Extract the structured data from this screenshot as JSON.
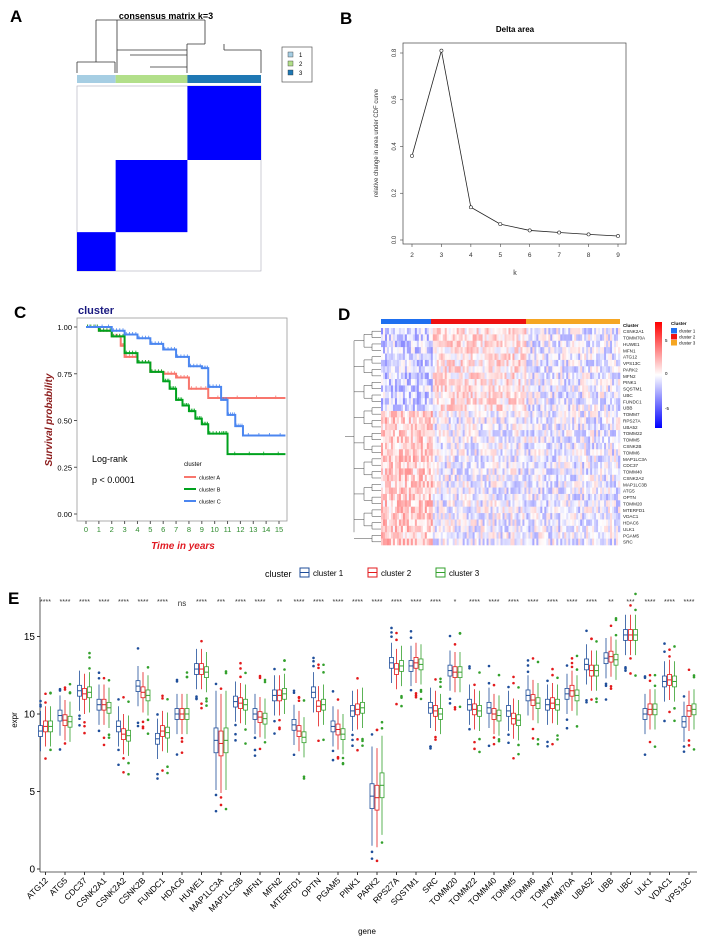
{
  "panels": {
    "A": "A",
    "B": "B",
    "C": "C",
    "D": "D",
    "E": "E"
  },
  "chart_data": [
    {
      "panel": "A",
      "type": "heatmap",
      "title": "consensus matrix k=3",
      "clusters": [
        {
          "label": "1",
          "color": "#a6cee3",
          "share": 0.21
        },
        {
          "label": "2",
          "color": "#b2df8a",
          "share": 0.39
        },
        {
          "label": "3",
          "color": "#1f78b4",
          "share": 0.4
        }
      ],
      "block_color": "#0000ff"
    },
    {
      "panel": "B",
      "type": "line",
      "title": "Delta area",
      "xlabel": "k",
      "ylabel": "relative change in area under CDF curve",
      "x": [
        2,
        3,
        4,
        5,
        6,
        7,
        8,
        9
      ],
      "y": [
        0.36,
        0.81,
        0.14,
        0.068,
        0.041,
        0.032,
        0.024,
        0.017
      ],
      "xticks": [
        "2",
        "3",
        "4",
        "5",
        "6",
        "7",
        "8",
        "9"
      ],
      "yticks": [
        "0.0",
        "0.2",
        "0.4",
        "0.6",
        "0.8"
      ],
      "ylim": [
        0,
        0.8
      ]
    },
    {
      "panel": "C",
      "type": "line",
      "title": "cluster",
      "xlabel": "Time in years",
      "ylabel": "Survival probability",
      "xticks": [
        "0",
        "1",
        "2",
        "3",
        "4",
        "5",
        "6",
        "7",
        "8",
        "9",
        "10",
        "11",
        "12",
        "13",
        "14",
        "15"
      ],
      "yticks": [
        "0.00",
        "0.25",
        "0.50",
        "0.75",
        "1.00"
      ],
      "xlim": [
        0,
        15.5
      ],
      "ylim": [
        0,
        1
      ],
      "annotation": [
        "Log-rank",
        "p < 0.0001"
      ],
      "legend_title": "cluster",
      "series": [
        {
          "name": "cluster A",
          "color": "#f8766d",
          "x": [
            0,
            1,
            2,
            2.7,
            3,
            4,
            5,
            6,
            7,
            8,
            9.5,
            15.5
          ],
          "y": [
            1,
            0.98,
            0.95,
            0.9,
            0.84,
            0.81,
            0.76,
            0.75,
            0.73,
            0.67,
            0.62,
            0.62
          ]
        },
        {
          "name": "cluster B",
          "color": "#00a21e",
          "x": [
            0,
            1,
            2,
            3,
            4,
            5,
            6,
            6.5,
            7,
            7.5,
            8,
            8.5,
            9,
            9.5,
            10.5,
            11,
            15.5
          ],
          "y": [
            1,
            0.98,
            0.95,
            0.86,
            0.81,
            0.76,
            0.71,
            0.67,
            0.61,
            0.58,
            0.55,
            0.51,
            0.48,
            0.43,
            0.43,
            0.32,
            0.32
          ]
        },
        {
          "name": "cluster C",
          "color": "#4b86f0",
          "x": [
            0,
            2,
            3,
            4,
            5,
            6,
            7,
            8,
            9,
            9.5,
            10.5,
            11,
            11.6,
            12.2,
            15.5
          ],
          "y": [
            1,
            0.98,
            0.96,
            0.94,
            0.91,
            0.88,
            0.84,
            0.79,
            0.78,
            0.68,
            0.61,
            0.53,
            0.47,
            0.42,
            0.42
          ]
        }
      ]
    },
    {
      "panel": "D",
      "type": "heatmap",
      "annotation_title": "Cluster",
      "legend_title": "Cluster",
      "groups": [
        {
          "name": "cluster 1",
          "color": "#1e6ff0"
        },
        {
          "name": "cluster 2",
          "color": "#ee1111"
        },
        {
          "name": "cluster 3",
          "color": "#f5a623"
        }
      ],
      "color_scale": {
        "low": "#0000ff",
        "mid": "#ffffff",
        "high": "#ff0000",
        "ticks": [
          "5",
          "0",
          "-5"
        ]
      },
      "genes": [
        "CSNK2A1",
        "TOMM70A",
        "HUWE1",
        "MFN1",
        "ATG12",
        "VPS13C",
        "PARK2",
        "MFN2",
        "PINK1",
        "SQSTM1",
        "UBC",
        "FUNDC1",
        "UBB",
        "TOMM7",
        "RPS27A",
        "UBA52",
        "TOMM22",
        "TOMM5",
        "CSNK2B",
        "TOMM6",
        "MAP1LC3A",
        "CDC37",
        "TOMM40",
        "CSNK2A2",
        "MAP1LC3B",
        "ATG5",
        "OPTN",
        "TOMM20",
        "MTERFD1",
        "VDAC1",
        "HDAC6",
        "ULK1",
        "PGAM5",
        "SRC"
      ]
    },
    {
      "panel": "E",
      "type": "box",
      "xlabel": "gene",
      "ylabel": "expr",
      "yticks": [
        "0",
        "5",
        "10",
        "15"
      ],
      "ylim": [
        0,
        17.5
      ],
      "legend_title": "cluster",
      "series": [
        {
          "name": "cluster 1",
          "color": "#1f4e9a"
        },
        {
          "name": "cluster 2",
          "color": "#e31a1c"
        },
        {
          "name": "cluster 3",
          "color": "#33a02c"
        }
      ],
      "categories": [
        "ATG12",
        "ATG5",
        "CDC37",
        "CSNK2A1",
        "CSNK2A2",
        "CSNK2B",
        "FUNDC1",
        "HDAC6",
        "HUWE1",
        "MAP1LC3A",
        "MAP1LC3B",
        "MFN1",
        "MFN2",
        "MTERFD1",
        "OPTN",
        "PGAM5",
        "PINK1",
        "PARK2",
        "RPS27A",
        "SQSTM1",
        "SRC",
        "TOMM20",
        "TOMM22",
        "TOMM40",
        "TOMM5",
        "TOMM6",
        "TOMM7",
        "TOMM70A",
        "UBA52",
        "UBB",
        "UBC",
        "ULK1",
        "VDAC1",
        "VPS13C"
      ],
      "significance": [
        "****",
        "****",
        "****",
        "****",
        "****",
        "****",
        "****",
        "ns",
        "****",
        "***",
        "****",
        "****",
        "**",
        "****",
        "****",
        "****",
        "****",
        "****",
        "****",
        "****",
        "****",
        "*",
        "****",
        "****",
        "****",
        "****",
        "****",
        "****",
        "****",
        "**",
        "***",
        "****",
        "****",
        "****"
      ],
      "medians": [
        [
          8.9,
          9.2,
          9.2
        ],
        [
          9.9,
          9.6,
          9.5
        ],
        [
          11.5,
          11.3,
          11.4
        ],
        [
          10.6,
          10.6,
          10.4
        ],
        [
          9.2,
          8.7,
          8.6
        ],
        [
          11.8,
          11.4,
          11.2
        ],
        [
          8.4,
          8.9,
          8.8
        ],
        [
          10.0,
          10.0,
          10.0
        ],
        [
          12.9,
          12.9,
          12.7
        ],
        [
          8.3,
          8.1,
          8.3
        ],
        [
          10.8,
          10.7,
          10.6
        ],
        [
          10.0,
          9.8,
          9.7
        ],
        [
          11.2,
          11.2,
          11.3
        ],
        [
          9.3,
          8.9,
          8.5
        ],
        [
          11.4,
          10.5,
          10.6
        ],
        [
          9.2,
          9.0,
          8.7
        ],
        [
          10.2,
          10.3,
          10.4
        ],
        [
          4.7,
          4.6,
          5.4
        ],
        [
          13.3,
          12.9,
          13.1
        ],
        [
          13.1,
          13.3,
          13.2
        ],
        [
          10.4,
          10.2,
          10.0
        ],
        [
          12.8,
          12.7,
          12.7
        ],
        [
          10.6,
          10.3,
          10.2
        ],
        [
          10.4,
          10.0,
          9.9
        ],
        [
          10.2,
          9.7,
          9.6
        ],
        [
          11.2,
          10.9,
          10.7
        ],
        [
          10.6,
          10.7,
          10.6
        ],
        [
          11.3,
          11.5,
          11.2
        ],
        [
          13.2,
          12.8,
          12.8
        ],
        [
          13.6,
          13.7,
          13.5
        ],
        [
          15.1,
          15.1,
          15.1
        ],
        [
          10.0,
          10.3,
          10.3
        ],
        [
          12.1,
          12.2,
          12.1
        ],
        [
          9.5,
          10.2,
          10.3
        ]
      ]
    }
  ]
}
